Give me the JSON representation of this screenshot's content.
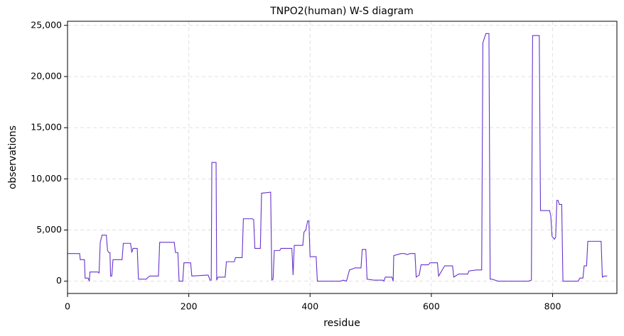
{
  "chart_data": {
    "type": "line",
    "title": "TNPO2(human) W-S diagram",
    "x_label": "residue",
    "y_label": "observations",
    "x": [
      0,
      20,
      21,
      28,
      29,
      34,
      36,
      37,
      50,
      52,
      54,
      57,
      64,
      66,
      68,
      70,
      71,
      73,
      75,
      90,
      92,
      104,
      106,
      108,
      115,
      117,
      130,
      133,
      136,
      150,
      152,
      176,
      178,
      182,
      184,
      190,
      192,
      203,
      205,
      230,
      232,
      235,
      237,
      238,
      245,
      246,
      248,
      260,
      262,
      275,
      277,
      288,
      290,
      305,
      307,
      309,
      318,
      320,
      335,
      337,
      339,
      341,
      350,
      352,
      370,
      372,
      374,
      388,
      390,
      393,
      396,
      398,
      400,
      410,
      412,
      450,
      455,
      460,
      465,
      470,
      474,
      484,
      486,
      492,
      494,
      505,
      520,
      522,
      524,
      535,
      537,
      538,
      550,
      556,
      560,
      565,
      573,
      575,
      580,
      583,
      595,
      598,
      610,
      612,
      617,
      622,
      635,
      637,
      645,
      660,
      662,
      675,
      683,
      685,
      690,
      695,
      697,
      700,
      710,
      760,
      765,
      767,
      778,
      780,
      795,
      797,
      799,
      803,
      805,
      807,
      809,
      811,
      815,
      817,
      842,
      845,
      850,
      852,
      856,
      858,
      880,
      882,
      885,
      890
    ],
    "series": [
      {
        "name": "observations",
        "color": "#6633cc",
        "values": [
          2700,
          2700,
          2100,
          2100,
          300,
          300,
          0,
          900,
          900,
          800,
          3800,
          4500,
          4500,
          3000,
          2800,
          2800,
          500,
          500,
          2100,
          2100,
          3700,
          3700,
          2800,
          3200,
          3200,
          200,
          200,
          400,
          500,
          500,
          3800,
          3800,
          2800,
          2800,
          0,
          0,
          1800,
          1800,
          500,
          600,
          600,
          100,
          100,
          11600,
          11600,
          100,
          400,
          400,
          1900,
          1900,
          2300,
          2300,
          6100,
          6100,
          6000,
          3200,
          3200,
          8600,
          8700,
          100,
          200,
          3000,
          3000,
          3200,
          3200,
          600,
          3500,
          3500,
          4800,
          5000,
          5900,
          5900,
          2400,
          2400,
          0,
          0,
          100,
          0,
          1100,
          1200,
          1300,
          1300,
          3100,
          3100,
          200,
          100,
          100,
          0,
          400,
          400,
          0,
          2500,
          2700,
          2700,
          2600,
          2700,
          2700,
          400,
          600,
          1600,
          1600,
          1800,
          1800,
          500,
          1000,
          1500,
          1500,
          400,
          700,
          700,
          1000,
          1100,
          1100,
          23300,
          24200,
          24200,
          200,
          200,
          0,
          0,
          100,
          24000,
          24000,
          6900,
          6900,
          6400,
          4400,
          4100,
          4300,
          7900,
          7900,
          7500,
          7500,
          0,
          0,
          300,
          300,
          1500,
          1500,
          3900,
          3900,
          400,
          500,
          500
        ]
      }
    ],
    "xlim": [
      0,
      906
    ],
    "ylim": [
      -1200,
      25400
    ],
    "xticks": [
      0,
      200,
      400,
      600,
      800
    ],
    "yticks": [
      0,
      {
        "value": 5000,
        "label": "5,000"
      },
      {
        "value": 10000,
        "label": "10,000"
      },
      {
        "value": 15000,
        "label": "15,000"
      },
      {
        "value": 20000,
        "label": "20,000"
      },
      {
        "value": 25000,
        "label": "25,000"
      }
    ],
    "grid": true
  }
}
